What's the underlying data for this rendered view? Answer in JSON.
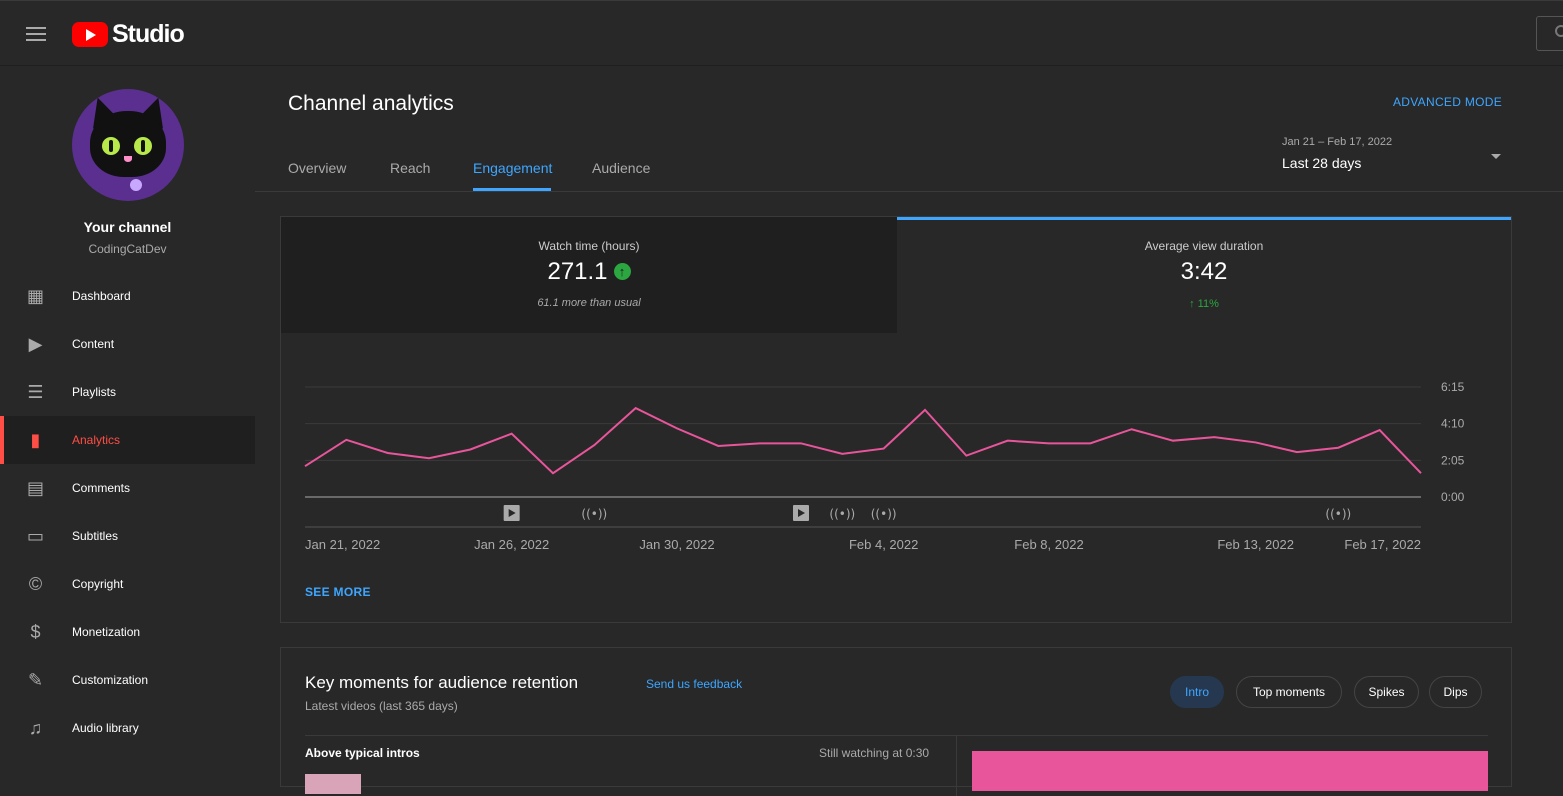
{
  "app": {
    "logo_text": "Studio",
    "search_icon": "search-icon"
  },
  "sidebar": {
    "your_channel": "Your channel",
    "channel_name": "CodingCatDev",
    "items": [
      {
        "label": "Dashboard",
        "icon": "dashboard-icon",
        "glyph": "▦"
      },
      {
        "label": "Content",
        "icon": "content-icon",
        "glyph": "▶"
      },
      {
        "label": "Playlists",
        "icon": "playlists-icon",
        "glyph": "☰"
      },
      {
        "label": "Analytics",
        "icon": "analytics-icon",
        "glyph": "▮"
      },
      {
        "label": "Comments",
        "icon": "comments-icon",
        "glyph": "▤"
      },
      {
        "label": "Subtitles",
        "icon": "subtitles-icon",
        "glyph": "▭"
      },
      {
        "label": "Copyright",
        "icon": "copyright-icon",
        "glyph": "©"
      },
      {
        "label": "Monetization",
        "icon": "monetization-icon",
        "glyph": "$"
      },
      {
        "label": "Customization",
        "icon": "customization-icon",
        "glyph": "✎"
      },
      {
        "label": "Audio library",
        "icon": "audio-library-icon",
        "glyph": "♫"
      }
    ],
    "active_item": "Analytics"
  },
  "header": {
    "title": "Channel analytics",
    "advanced_mode": "ADVANCED MODE",
    "tabs": [
      "Overview",
      "Reach",
      "Engagement",
      "Audience"
    ],
    "active_tab": "Engagement",
    "date_range": "Jan 21 – Feb 17, 2022",
    "date_label": "Last 28 days"
  },
  "metrics": [
    {
      "label": "Watch time (hours)",
      "value": "271.1",
      "sub": "61.1 more than usual"
    },
    {
      "label": "Average view duration",
      "value": "3:42",
      "sub": "↑ 11%"
    }
  ],
  "see_more": "SEE MORE",
  "chart_data": {
    "type": "line",
    "series": [
      {
        "values": [
          1.75,
          3.25,
          2.5,
          2.2,
          2.7,
          3.6,
          1.35,
          2.95,
          5.05,
          3.9,
          2.9,
          3.05,
          3.05,
          2.45,
          2.75,
          4.95,
          2.35,
          3.2,
          3.05,
          3.05,
          3.85,
          3.2,
          3.4,
          3.1,
          2.55,
          2.8,
          3.8,
          1.35
        ]
      }
    ],
    "y_ticks": [
      "6:15",
      "4:10",
      "2:05",
      "0:00"
    ],
    "ylim": [
      0,
      6.25
    ],
    "x_tick_labels": [
      "Jan 21, 2022",
      "Jan 26, 2022",
      "Jan 30, 2022",
      "Feb 4, 2022",
      "Feb 8, 2022",
      "Feb 13, 2022",
      "Feb 17, 2022"
    ],
    "x_tick_indices": [
      0,
      5,
      9,
      14,
      18,
      23,
      27
    ],
    "markers": [
      {
        "index": 5,
        "icon": "video-upload-icon"
      },
      {
        "index": 7,
        "icon": "live-stream-icon"
      },
      {
        "index": 12,
        "icon": "video-upload-icon"
      },
      {
        "index": 13,
        "icon": "live-stream-icon"
      },
      {
        "index": 14,
        "icon": "live-stream-icon"
      },
      {
        "index": 25,
        "icon": "live-stream-icon"
      }
    ],
    "line_color": "#e9559b"
  },
  "key_moments": {
    "title": "Key moments for audience retention",
    "subtitle": "Latest videos (last 365 days)",
    "feedback": "Send us feedback",
    "chips": [
      "Intro",
      "Top moments",
      "Spikes",
      "Dips"
    ],
    "active_chip": "Intro",
    "above_intros": "Above typical intros",
    "still_watching": "Still watching at 0:30"
  },
  "colors": {
    "accent": "#3ea6ff",
    "brand": "#ff0000",
    "active_nav": "#ff4e45",
    "positive": "#2ba640",
    "chart_line": "#e9559b"
  }
}
